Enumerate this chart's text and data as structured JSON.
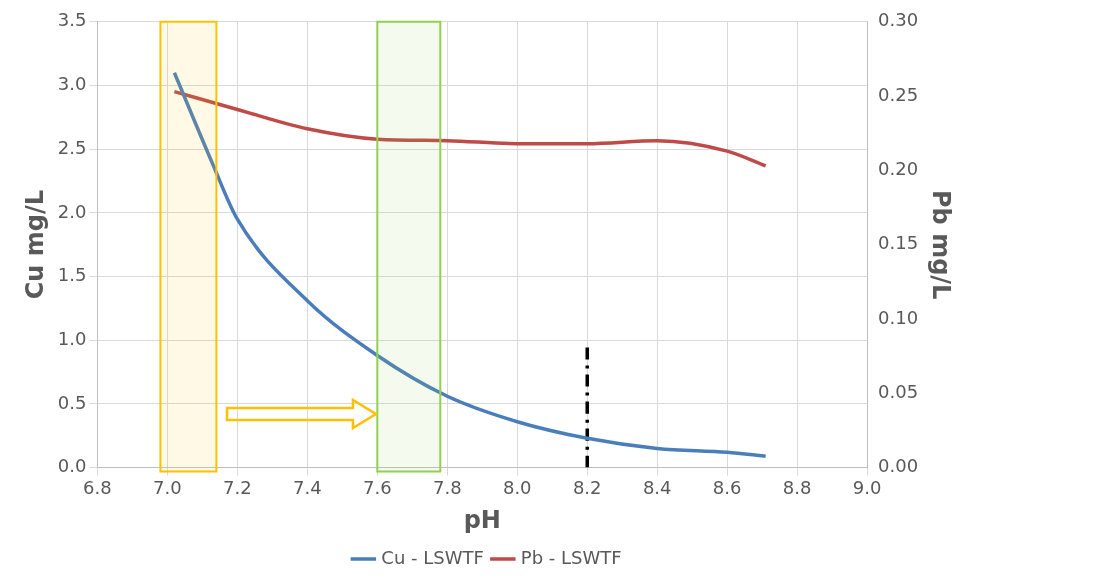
{
  "chart_data": {
    "type": "line",
    "xlabel": "pH",
    "ylabel": "Cu mg/L",
    "y2label": "Pb mg/L",
    "xlim": [
      6.8,
      9.0
    ],
    "xticks": [
      {
        "value": 6.8,
        "label": "6.8"
      },
      {
        "value": 7,
        "label": "7.0"
      },
      {
        "value": 7.2,
        "label": "7.2"
      },
      {
        "value": 7.4,
        "label": "7.4"
      },
      {
        "value": 7.6,
        "label": "7.6"
      },
      {
        "value": 7.8,
        "label": "7.8"
      },
      {
        "value": 8,
        "label": "8.0"
      },
      {
        "value": 8.2,
        "label": "8.2"
      },
      {
        "value": 8.4,
        "label": "8.4"
      },
      {
        "value": 8.6,
        "label": "8.6"
      },
      {
        "value": 8.8,
        "label": "8.8"
      },
      {
        "value": 9,
        "label": "9.0"
      }
    ],
    "ylim": [
      0,
      3.5
    ],
    "yticks": [
      {
        "value": 0,
        "label": "0.0"
      },
      {
        "value": 0.5,
        "label": "0.5"
      },
      {
        "value": 1,
        "label": "1.0"
      },
      {
        "value": 1.5,
        "label": "1.5"
      },
      {
        "value": 2,
        "label": "2.0"
      },
      {
        "value": 2.5,
        "label": "2.5"
      },
      {
        "value": 3,
        "label": "3.0"
      },
      {
        "value": 3.5,
        "label": "3.5"
      }
    ],
    "y2lim": [
      0,
      0.3
    ],
    "y2ticks": [
      {
        "value": 0,
        "label": "0.00"
      },
      {
        "value": 0.05,
        "label": "0.05"
      },
      {
        "value": 0.1,
        "label": "0.10"
      },
      {
        "value": 0.15,
        "label": "0.15"
      },
      {
        "value": 0.2,
        "label": "0.20"
      },
      {
        "value": 0.25,
        "label": "0.25"
      },
      {
        "value": 0.3,
        "label": "0.30"
      }
    ],
    "grid": true,
    "legend": "bottom",
    "marker": "none",
    "series": [
      {
        "name": "Cu - LSWTF",
        "color": "#4a7ebb",
        "x": [
          7.02,
          7.13,
          7.2,
          7.4,
          7.6,
          7.8,
          8.0,
          8.2,
          8.4,
          8.6,
          8.71
        ],
        "values": [
          3.1,
          2.38,
          1.95,
          1.31,
          0.88,
          0.56,
          0.36,
          0.23,
          0.15,
          0.12,
          0.09
        ]
      },
      {
        "name": "Pb - LSWTF",
        "color": "#be4b48",
        "axis": "y2",
        "x": [
          7.02,
          7.2,
          7.4,
          7.6,
          7.8,
          8.0,
          8.2,
          8.4,
          8.6,
          8.71
        ],
        "values": [
          0.253,
          0.241,
          0.228,
          0.221,
          0.22,
          0.218,
          0.218,
          0.22,
          0.213,
          0.203
        ]
      },
      {
        "color": "#000000",
        "line_style": "dashed",
        "x": [
          8.2,
          8.2
        ],
        "values": [
          0,
          0.96
        ]
      }
    ],
    "bands": [
      {
        "axis": "x",
        "from": 6.98,
        "to": 7.14,
        "color": "#ffc000"
      },
      {
        "axis": "x",
        "from": 7.6,
        "to": 7.78,
        "color": "#92d050"
      }
    ]
  }
}
